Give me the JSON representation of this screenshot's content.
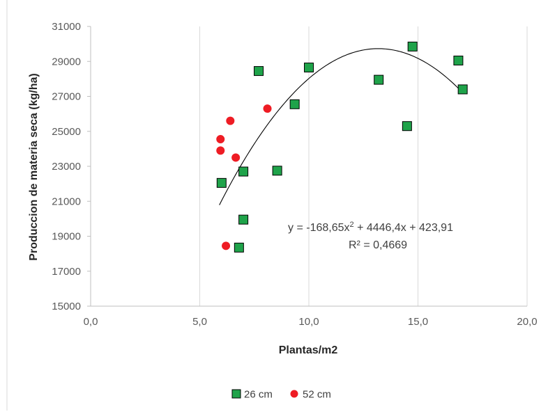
{
  "chart_data": {
    "type": "scatter",
    "title": "",
    "xlabel": "Plantas/m2",
    "ylabel": "Produccion de materia seca (kg/ha)",
    "xlim": [
      0,
      20
    ],
    "ylim": [
      15000,
      31000
    ],
    "x_ticks": [
      0,
      5,
      10,
      15,
      20
    ],
    "x_tick_labels": [
      "0,0",
      "5,0",
      "10,0",
      "15,0",
      "20,0"
    ],
    "y_ticks": [
      15000,
      17000,
      19000,
      21000,
      23000,
      25000,
      27000,
      29000,
      31000
    ],
    "y_tick_labels": [
      "15000",
      "17000",
      "19000",
      "21000",
      "23000",
      "25000",
      "27000",
      "29000",
      "31000"
    ],
    "grid": "vertical",
    "legend_position": "bottom",
    "series": [
      {
        "name": "26 cm",
        "marker": "square",
        "color": "#1fa34a",
        "edge_color": "#000000",
        "points": [
          {
            "x": 6.0,
            "y": 22050
          },
          {
            "x": 6.8,
            "y": 18350
          },
          {
            "x": 7.0,
            "y": 19950
          },
          {
            "x": 7.0,
            "y": 22700
          },
          {
            "x": 7.7,
            "y": 28450
          },
          {
            "x": 8.55,
            "y": 22750
          },
          {
            "x": 9.35,
            "y": 26550
          },
          {
            "x": 10.0,
            "y": 28650
          },
          {
            "x": 13.2,
            "y": 27950
          },
          {
            "x": 14.5,
            "y": 25300
          },
          {
            "x": 14.75,
            "y": 29850
          },
          {
            "x": 16.85,
            "y": 29050
          },
          {
            "x": 17.05,
            "y": 27400
          }
        ]
      },
      {
        "name": "52 cm",
        "marker": "circle",
        "color": "#ee1c24",
        "points": [
          {
            "x": 5.95,
            "y": 23900
          },
          {
            "x": 5.95,
            "y": 24550
          },
          {
            "x": 6.2,
            "y": 18450
          },
          {
            "x": 6.4,
            "y": 25600
          },
          {
            "x": 6.65,
            "y": 23500
          },
          {
            "x": 8.1,
            "y": 26300
          }
        ]
      }
    ],
    "trendline": {
      "type": "polynomial",
      "coefficients": [
        -168.65,
        4446.4,
        423.91
      ],
      "x_range": [
        5.9,
        17.05
      ],
      "color": "#000000"
    },
    "annotations": {
      "equation": "y = -168,65x² + 4446,4x + 423,91",
      "r_squared": "R² = 0,4669"
    }
  }
}
